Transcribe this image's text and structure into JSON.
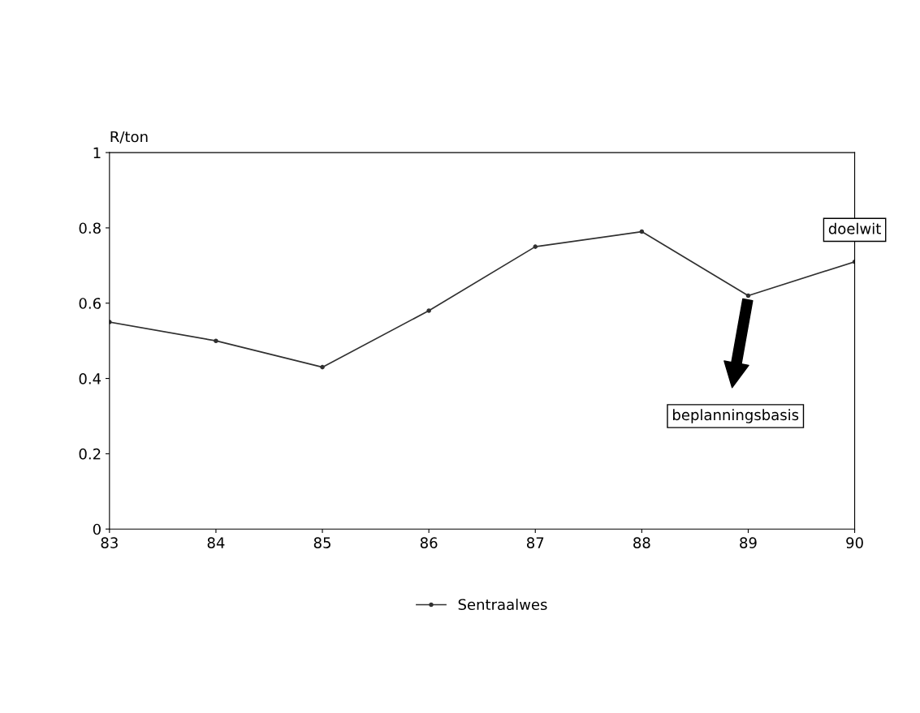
{
  "chart_data": {
    "type": "line",
    "ylabel": "R/ton",
    "x": [
      83,
      84,
      85,
      86,
      87,
      88,
      89,
      90
    ],
    "series": [
      {
        "name": "Sentraalwes",
        "color": "#303030",
        "values": [
          0.55,
          0.5,
          0.43,
          0.58,
          0.75,
          0.79,
          0.62,
          0.71
        ]
      }
    ],
    "xlim": [
      83,
      90
    ],
    "xticks": [
      83,
      84,
      85,
      86,
      87,
      88,
      89,
      90
    ],
    "ylim": [
      0,
      1
    ],
    "yticks": [
      0,
      0.2,
      0.4,
      0.6,
      0.8,
      1
    ],
    "annotations": [
      {
        "text": "doelwit",
        "x": 90,
        "y": 0.71
      },
      "beplanningsbasis"
    ],
    "grid": false,
    "legend": "bottom",
    "marker": "circle",
    "line_style": "solid"
  }
}
